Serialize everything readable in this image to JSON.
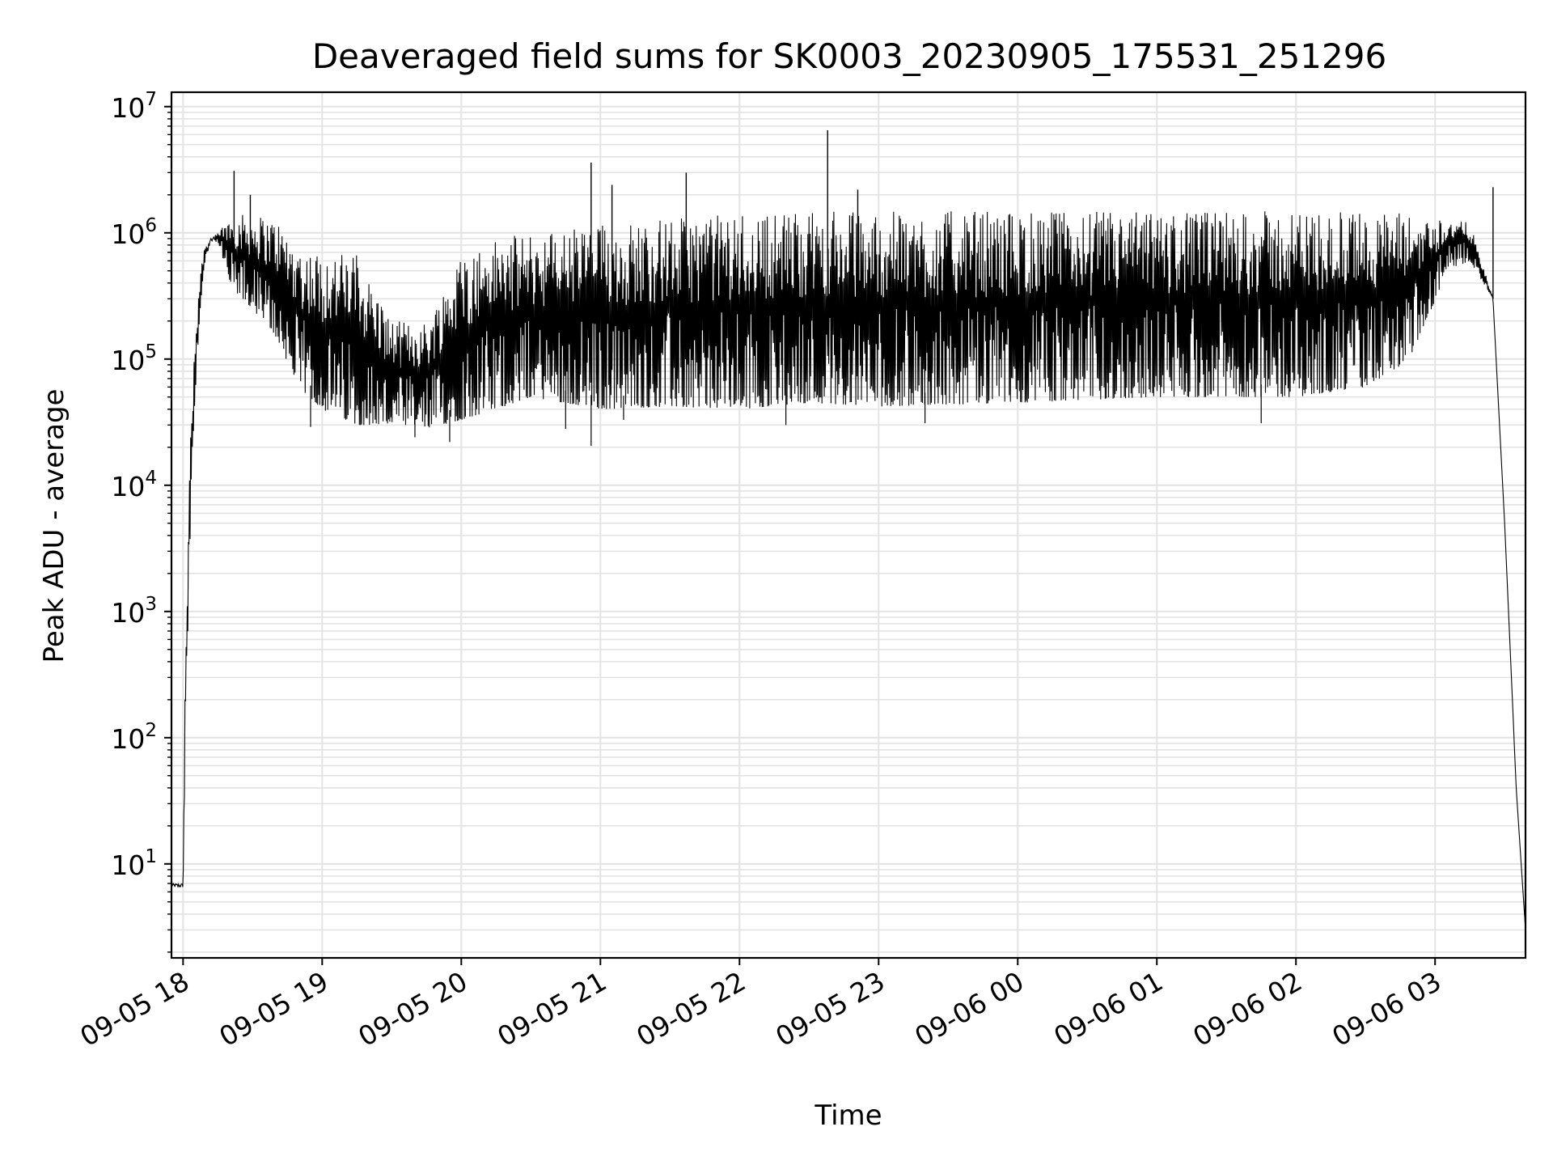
{
  "chart_data": {
    "type": "line",
    "title": "Deaveraged field sums for SK0003_20230905_175531_251296",
    "xlabel": "Time",
    "ylabel": "Peak ADU - average",
    "yscale": "log",
    "ylim": [
      1.8,
      13000000
    ],
    "xlim": [
      "2023-09-05 17:55",
      "2023-09-06 03:39"
    ],
    "grid": true,
    "line_color": "#000000",
    "x_ticks": [
      "09-05 18",
      "09-05 19",
      "09-05 20",
      "09-05 21",
      "09-05 22",
      "09-05 23",
      "09-06 00",
      "09-06 01",
      "09-06 02",
      "09-06 03"
    ],
    "y_ticks": [
      {
        "base": "10",
        "exp": "1"
      },
      {
        "base": "10",
        "exp": "2"
      },
      {
        "base": "10",
        "exp": "3"
      },
      {
        "base": "10",
        "exp": "4"
      },
      {
        "base": "10",
        "exp": "5"
      },
      {
        "base": "10",
        "exp": "6"
      },
      {
        "base": "10",
        "exp": "7"
      }
    ],
    "series": [
      {
        "time": [
          "2023-09-05 17:55",
          "2023-09-05 18:00",
          "2023-09-05 18:01",
          "2023-09-05 18:03",
          "2023-09-05 18:05",
          "2023-09-05 18:07",
          "2023-09-05 18:09",
          "2023-09-05 18:12",
          "2023-09-05 18:15",
          "2023-09-05 18:20",
          "2023-09-05 18:25",
          "2023-09-05 18:30",
          "2023-09-05 18:40",
          "2023-09-05 18:50",
          "2023-09-05 19:00",
          "2023-09-05 19:15",
          "2023-09-05 19:30",
          "2023-09-05 19:45",
          "2023-09-05 20:00",
          "2023-09-05 20:15",
          "2023-09-05 20:30",
          "2023-09-05 21:00",
          "2023-09-05 21:30",
          "2023-09-05 22:00",
          "2023-09-05 22:30",
          "2023-09-05 23:00",
          "2023-09-06 00:00",
          "2023-09-06 01:00",
          "2023-09-06 02:00",
          "2023-09-06 02:30",
          "2023-09-06 02:50",
          "2023-09-06 03:05",
          "2023-09-06 03:15",
          "2023-09-06 03:25",
          "2023-09-06 03:30",
          "2023-09-06 03:35",
          "2023-09-06 03:39"
        ],
        "lower": [
          6.5,
          6.5,
          100,
          3500,
          40000,
          200000,
          500000,
          850000,
          850000,
          400000,
          300000,
          250000,
          150000,
          60000,
          40000,
          30000,
          30000,
          28000,
          33000,
          40000,
          50000,
          40000,
          42000,
          40000,
          45000,
          42000,
          45000,
          50000,
          50000,
          60000,
          100000,
          500000,
          600000,
          300000,
          5000,
          40,
          3
        ],
        "upper": [
          7,
          7,
          400,
          20000,
          150000,
          400000,
          800000,
          900000,
          1000000,
          1400000,
          1400000,
          1400000,
          1300000,
          800000,
          700000,
          700000,
          200000,
          200000,
          700000,
          900000,
          1000000,
          1200000,
          1300000,
          1450000,
          1500000,
          1500000,
          1500000,
          1500000,
          1500000,
          1500000,
          1400000,
          1300000,
          1200000,
          300000,
          5000,
          40,
          3
        ]
      }
    ],
    "spikes": [
      {
        "time": "2023-09-05 18:22",
        "value": 3100000
      },
      {
        "time": "2023-09-05 18:29",
        "value": 2000000
      },
      {
        "time": "2023-09-05 20:56",
        "value": 3600000
      },
      {
        "time": "2023-09-05 21:05",
        "value": 2400000
      },
      {
        "time": "2023-09-05 21:37",
        "value": 3000000
      },
      {
        "time": "2023-09-05 22:38",
        "value": 6500000
      },
      {
        "time": "2023-09-05 22:51",
        "value": 2200000
      },
      {
        "time": "2023-09-06 03:25",
        "value": 2300000
      }
    ],
    "dips": [
      {
        "time": "2023-09-05 18:55",
        "value": 29000
      },
      {
        "time": "2023-09-05 19:40",
        "value": 24000
      },
      {
        "time": "2023-09-05 19:55",
        "value": 22000
      },
      {
        "time": "2023-09-05 20:45",
        "value": 28000
      },
      {
        "time": "2023-09-05 20:56",
        "value": 20500
      },
      {
        "time": "2023-09-05 21:10",
        "value": 33000
      },
      {
        "time": "2023-09-05 22:20",
        "value": 30000
      },
      {
        "time": "2023-09-05 23:20",
        "value": 31000
      },
      {
        "time": "2023-09-06 01:45",
        "value": 31000
      }
    ]
  }
}
